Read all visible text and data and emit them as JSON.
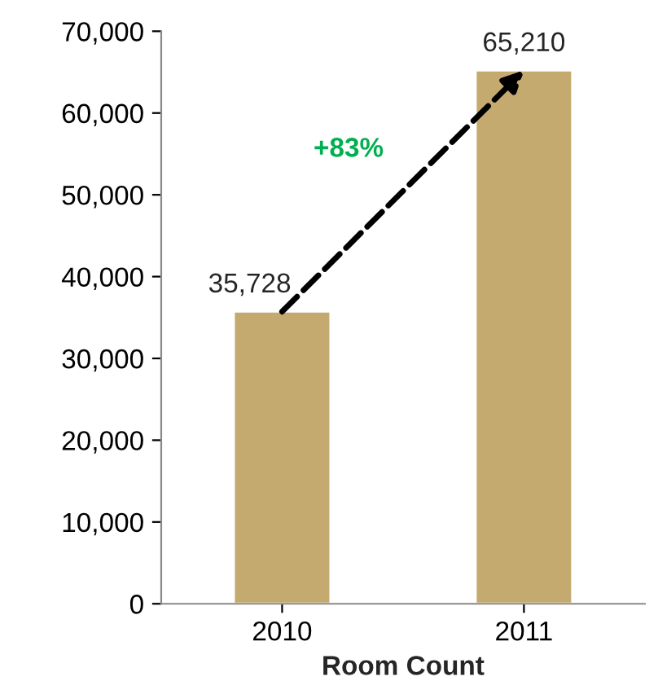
{
  "chart_data": {
    "type": "bar",
    "xlabel": "Room Count",
    "categories": [
      "2010",
      "2011"
    ],
    "values": [
      35728,
      65210
    ],
    "value_labels": [
      "35,728",
      "65,210"
    ],
    "color": "#c4aa6e",
    "ylim": [
      0,
      70000
    ],
    "yticks": [
      0,
      {
        "value": 10000,
        "label": "10,000"
      },
      {
        "value": 20000,
        "label": "20,000"
      },
      {
        "value": 30000,
        "label": "30,000"
      },
      {
        "value": 40000,
        "label": "40,000"
      },
      {
        "value": 50000,
        "label": "50,000"
      },
      {
        "value": 60000,
        "label": "60,000"
      },
      {
        "value": 70000,
        "label": "70,000"
      }
    ],
    "annotations": [
      "+83%"
    ],
    "grid": false,
    "legend": false
  }
}
